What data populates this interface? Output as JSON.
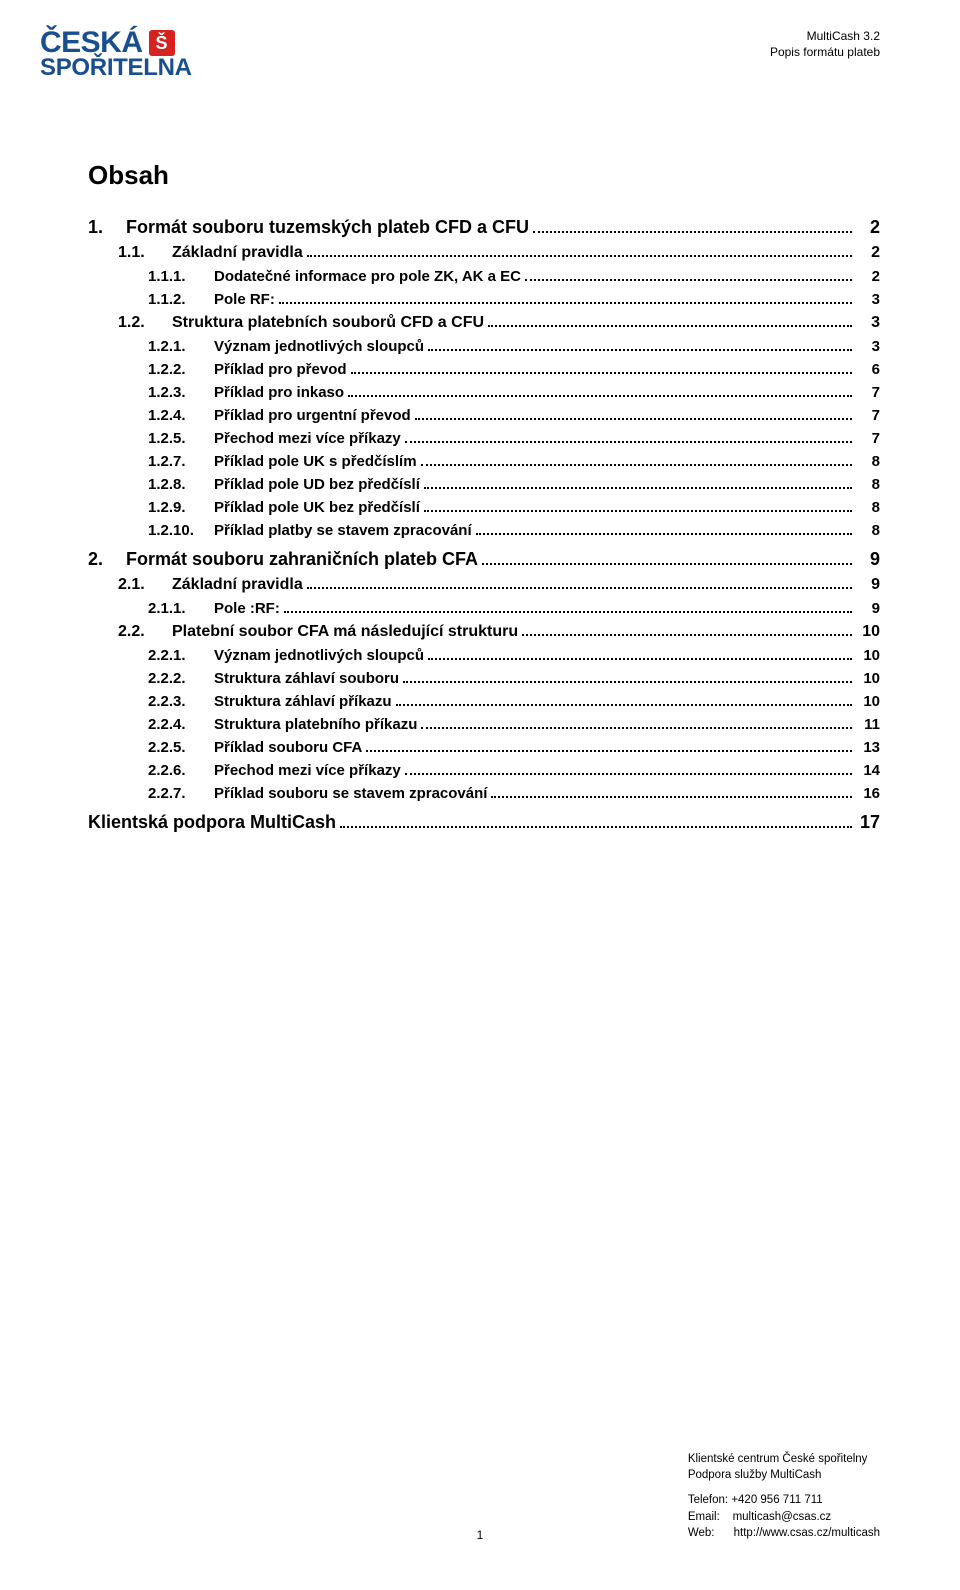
{
  "header": {
    "right_line1": "MultiCash 3.2",
    "right_line2": "Popis formátu plateb"
  },
  "logo": {
    "line1": "ČESKÁ",
    "s_letter": "Š",
    "line2": "SPOŘITELNA"
  },
  "title": "Obsah",
  "toc": [
    {
      "level": 0,
      "num": "1.",
      "title": "Formát souboru tuzemských plateb CFD a CFU",
      "page": "2"
    },
    {
      "level": 1,
      "num": "1.1.",
      "title": "Základní pravidla",
      "page": "2"
    },
    {
      "level": 2,
      "num": "1.1.1.",
      "title": "Dodatečné informace pro pole ZK, AK a EC",
      "page": "2"
    },
    {
      "level": 2,
      "num": "1.1.2.",
      "title": "Pole RF:",
      "page": "3"
    },
    {
      "level": 1,
      "num": "1.2.",
      "title": "Struktura platebních souborů CFD a CFU",
      "page": "3"
    },
    {
      "level": 2,
      "num": "1.2.1.",
      "title": "Význam jednotlivých sloupců",
      "page": "3"
    },
    {
      "level": 2,
      "num": "1.2.2.",
      "title": "Příklad pro převod",
      "page": "6"
    },
    {
      "level": 2,
      "num": "1.2.3.",
      "title": "Příklad pro inkaso",
      "page": "7"
    },
    {
      "level": 2,
      "num": "1.2.4.",
      "title": "Příklad pro urgentní převod",
      "page": "7"
    },
    {
      "level": 2,
      "num": "1.2.5.",
      "title": "Přechod mezi více příkazy",
      "page": "7"
    },
    {
      "level": 2,
      "num": "1.2.7.",
      "title": "Příklad pole UK s předčíslím",
      "page": "8"
    },
    {
      "level": 2,
      "num": "1.2.8.",
      "title": "Příklad pole UD bez předčíslí",
      "page": "8"
    },
    {
      "level": 2,
      "num": "1.2.9.",
      "title": "Příklad pole UK bez předčíslí",
      "page": "8"
    },
    {
      "level": 2,
      "num": "1.2.10.",
      "title": "Příklad platby se stavem zpracování",
      "page": "8"
    },
    {
      "level": 0,
      "num": "2.",
      "title": "Formát souboru zahraničních plateb CFA",
      "page": "9"
    },
    {
      "level": 1,
      "num": "2.1.",
      "title": "Základní pravidla",
      "page": "9"
    },
    {
      "level": 2,
      "num": "2.1.1.",
      "title": "Pole :RF:",
      "page": "9"
    },
    {
      "level": 1,
      "num": "2.2.",
      "title": "Platební soubor CFA má následující strukturu",
      "page": "10"
    },
    {
      "level": 2,
      "num": "2.2.1.",
      "title": "Význam jednotlivých sloupců",
      "page": "10"
    },
    {
      "level": 2,
      "num": "2.2.2.",
      "title": "Struktura záhlaví souboru",
      "page": "10"
    },
    {
      "level": 2,
      "num": "2.2.3.",
      "title": "Struktura záhlaví příkazu",
      "page": "10"
    },
    {
      "level": 2,
      "num": "2.2.4.",
      "title": "Struktura platebního příkazu",
      "page": "11"
    },
    {
      "level": 2,
      "num": "2.2.5.",
      "title": "Příklad souboru CFA",
      "page": "13"
    },
    {
      "level": 2,
      "num": "2.2.6.",
      "title": "Přechod mezi více příkazy",
      "page": "14"
    },
    {
      "level": 2,
      "num": "2.2.7.",
      "title": "Příklad souboru se stavem zpracování",
      "page": "16"
    },
    {
      "level": 0,
      "num": "",
      "title": "Klientská podpora MultiCash",
      "page": "17",
      "flat": true
    }
  ],
  "footer": {
    "line1": "Klientské centrum České spořitelny",
    "line2": "Podpora služby MultiCash",
    "phone_label": "Telefon:",
    "phone": "+420 956 711 711",
    "email_label": "Email:",
    "email": "multicash@csas.cz",
    "web_label": "Web:",
    "web": "http://www.csas.cz/multicash",
    "page_number": "1"
  },
  "colors": {
    "brand_blue": "#1a4f8f",
    "brand_red": "#d62320",
    "text": "#000000",
    "background": "#ffffff"
  }
}
